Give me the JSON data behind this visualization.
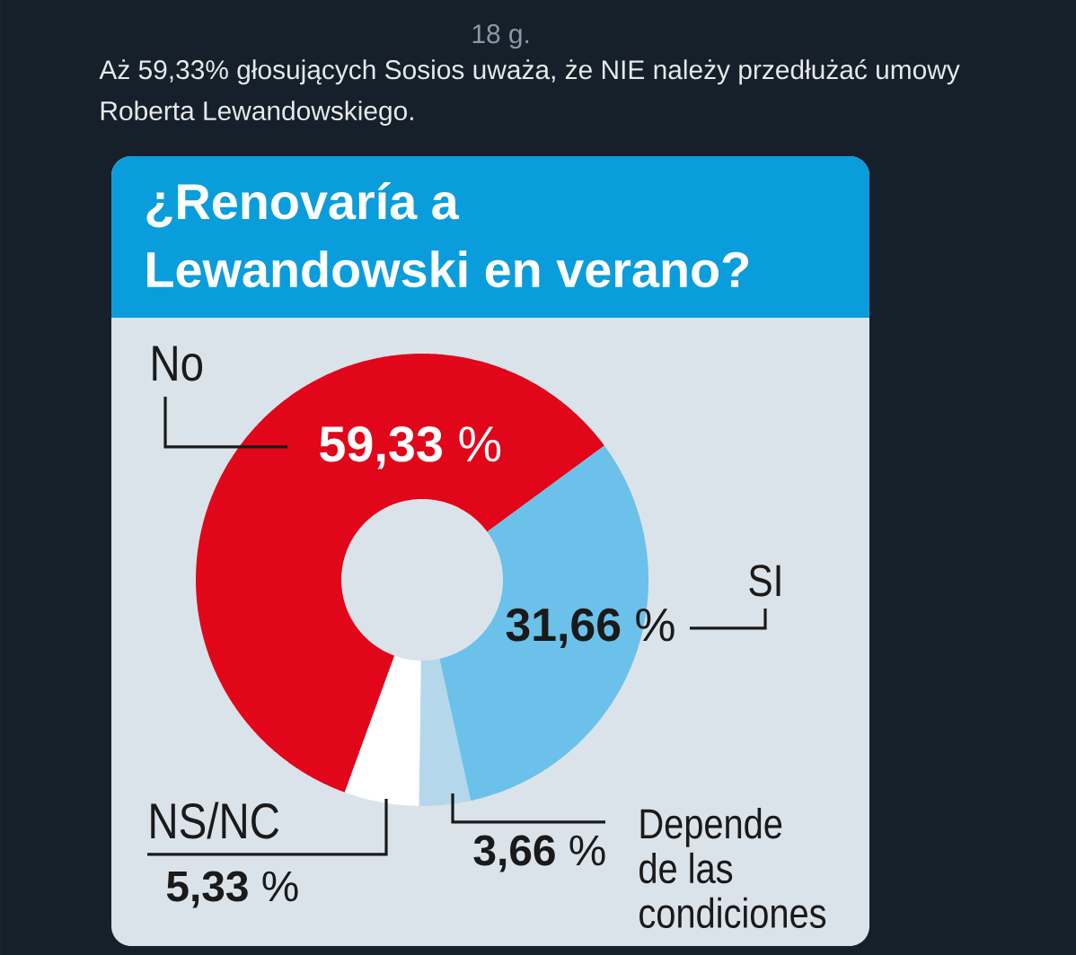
{
  "chart_data": {
    "type": "donut",
    "title": "¿Renovaría a Lewandowski en verano?",
    "categories": [
      "No",
      "SI",
      "Depende de las condiciones",
      "NS/NC"
    ],
    "values": [
      59.33,
      31.66,
      3.66,
      5.33
    ],
    "colors": [
      "#e2061a",
      "#6bc1e9",
      "#b5d7ec",
      "#ffffff"
    ],
    "value_labels": [
      "**59,33** %",
      "**31,66** %",
      "**3,66** %",
      "**5,33** %"
    ],
    "annotations": [
      "18 g.",
      "Aż 59,33% głosujących Sosios uważa, że NIE należy przedłużać umowy Roberta Lewandowskiego."
    ]
  }
}
